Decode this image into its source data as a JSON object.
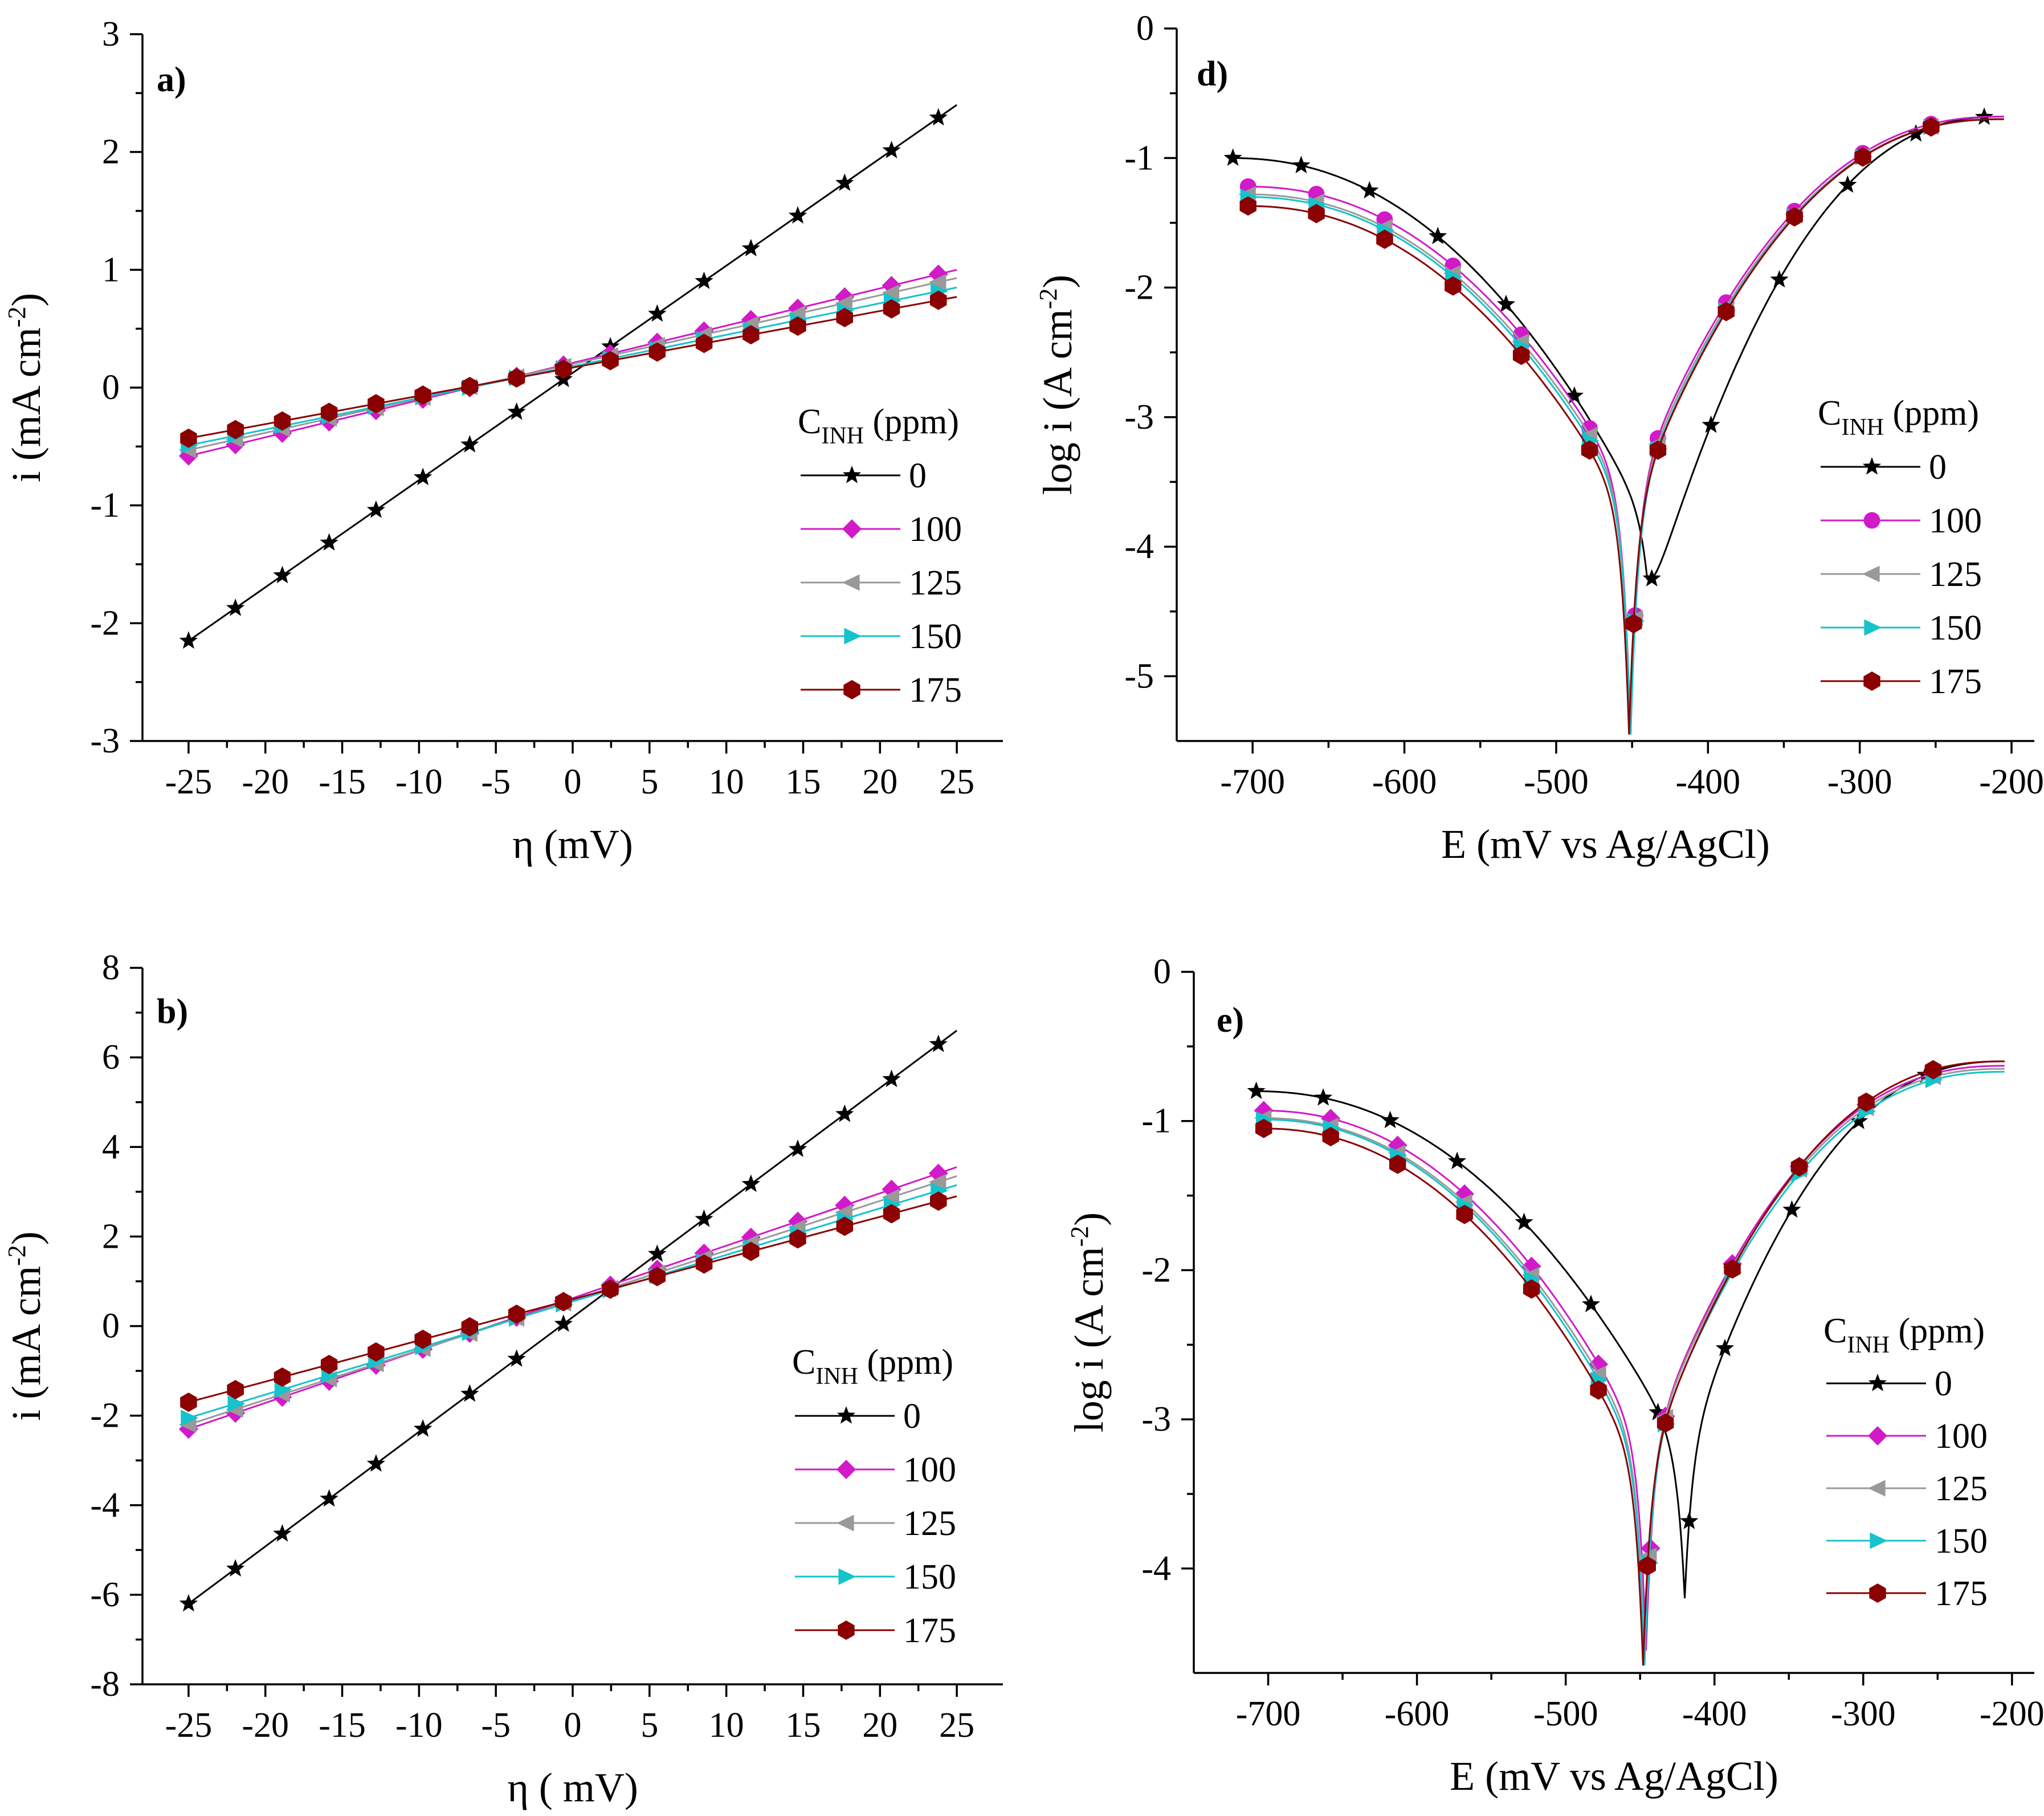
{
  "colors": {
    "s0": "#000000",
    "s100": "#d11ac8",
    "s125": "#999999",
    "s150": "#14c3cc",
    "s175": "#8b0000"
  },
  "chart_data": [
    {
      "id": "a",
      "type": "line",
      "panel_label": "a)",
      "xlabel": "η (mV)",
      "ylabel_main": "i (mA cm",
      "ylabel_sup": "-2",
      "ylabel_end": ")",
      "xlim": [
        -28,
        28
      ],
      "ylim": [
        -3,
        3
      ],
      "xticks": [
        -25,
        -20,
        -15,
        -10,
        -5,
        0,
        5,
        10,
        15,
        20,
        25
      ],
      "yticks": [
        -3,
        -2,
        -1,
        0,
        1,
        2,
        3
      ],
      "legend_title_main": "C",
      "legend_title_sub": "INH",
      "legend_title_end": " (ppm)",
      "series": [
        {
          "name": "0",
          "color": "s0",
          "marker": "star",
          "x0": -25,
          "x1": 25,
          "y0": -2.15,
          "y1": 2.4
        },
        {
          "name": "100",
          "color": "s100",
          "marker": "diamond",
          "x0": -25,
          "x1": 25,
          "y0": -0.58,
          "y1": 1.0
        },
        {
          "name": "125",
          "color": "s125",
          "marker": "triangle-left",
          "x0": -25,
          "x1": 25,
          "y0": -0.53,
          "y1": 0.93
        },
        {
          "name": "150",
          "color": "s150",
          "marker": "triangle-right",
          "x0": -25,
          "x1": 25,
          "y0": -0.49,
          "y1": 0.85
        },
        {
          "name": "175",
          "color": "s175",
          "marker": "hexagon",
          "x0": -25,
          "x1": 25,
          "y0": -0.43,
          "y1": 0.77
        }
      ]
    },
    {
      "id": "b",
      "type": "line",
      "panel_label": "b)",
      "xlabel": "η ( mV)",
      "ylabel_main": "i (mA cm",
      "ylabel_sup": "-2",
      "ylabel_end": ")",
      "xlim": [
        -28,
        28
      ],
      "ylim": [
        -8,
        8
      ],
      "xticks": [
        -25,
        -20,
        -15,
        -10,
        -5,
        0,
        5,
        10,
        15,
        20,
        25
      ],
      "yticks": [
        -8,
        -6,
        -4,
        -2,
        0,
        2,
        4,
        6,
        8
      ],
      "legend_title_main": "C",
      "legend_title_sub": "INH",
      "legend_title_end": " (ppm)",
      "series": [
        {
          "name": "0",
          "color": "s0",
          "marker": "star",
          "x0": -25,
          "x1": 25,
          "y0": -6.2,
          "y1": 6.6
        },
        {
          "name": "100",
          "color": "s100",
          "marker": "diamond",
          "x0": -25,
          "x1": 25,
          "y0": -2.3,
          "y1": 3.55
        },
        {
          "name": "125",
          "color": "s125",
          "marker": "triangle-left",
          "x0": -25,
          "x1": 25,
          "y0": -2.2,
          "y1": 3.35
        },
        {
          "name": "150",
          "color": "s150",
          "marker": "triangle-right",
          "x0": -25,
          "x1": 25,
          "y0": -2.05,
          "y1": 3.15
        },
        {
          "name": "175",
          "color": "s175",
          "marker": "hexagon",
          "x0": -25,
          "x1": 25,
          "y0": -1.7,
          "y1": 2.9
        }
      ]
    },
    {
      "id": "d",
      "type": "line",
      "panel_label": "d)",
      "xlabel": "E (mV vs Ag/AgCl)",
      "ylabel_main": "log  i  (A cm",
      "ylabel_sup": "-2",
      "ylabel_end": ")",
      "xlim": [
        -750,
        -185
      ],
      "ylim": [
        -5.5,
        0
      ],
      "xticks": [
        -700,
        -600,
        -500,
        -400,
        -300,
        -200
      ],
      "yticks": [
        -5,
        -4,
        -3,
        -2,
        -1,
        0
      ],
      "legend_title_main": "C",
      "legend_title_sub": "INH",
      "legend_title_end": " (ppm)",
      "series": [
        {
          "name": "0",
          "color": "s0",
          "marker": "star",
          "xs": [
            -715,
            -440,
            -205
          ],
          "a": [
            -1.0,
            -3.8
          ],
          "c": [
            -0.68,
            -4.5
          ],
          "tip": -4.25
        },
        {
          "name": "100",
          "color": "s100",
          "marker": "circle",
          "xs": [
            -705,
            -451,
            -205
          ],
          "a": [
            -1.22,
            -3.6
          ],
          "c": [
            -0.68,
            -3.6
          ],
          "tip": -5.45
        },
        {
          "name": "125",
          "color": "s125",
          "marker": "triangle-left",
          "xs": [
            -705,
            -451,
            -205
          ],
          "a": [
            -1.28,
            -3.65
          ],
          "c": [
            -0.7,
            -3.65
          ],
          "tip": -5.45
        },
        {
          "name": "150",
          "color": "s150",
          "marker": "triangle-right",
          "xs": [
            -705,
            -451,
            -205
          ],
          "a": [
            -1.3,
            -3.7
          ],
          "c": [
            -0.7,
            -3.7
          ],
          "tip": -5.45
        },
        {
          "name": "175",
          "color": "s175",
          "marker": "hexagon",
          "xs": [
            -705,
            -452,
            -205
          ],
          "a": [
            -1.37,
            -3.75
          ],
          "c": [
            -0.7,
            -3.75
          ],
          "tip": -5.45
        }
      ]
    },
    {
      "id": "e",
      "type": "line",
      "panel_label": "e)",
      "xlabel": "E (mV vs Ag/AgCl)",
      "ylabel_main": "log  i  (A cm",
      "ylabel_sup": "-2",
      "ylabel_end": ")",
      "xlim": [
        -750,
        -185
      ],
      "ylim": [
        -4.7,
        0
      ],
      "xticks": [
        -700,
        -600,
        -500,
        -400,
        -300,
        -200
      ],
      "yticks": [
        -4,
        -3,
        -2,
        -1,
        0
      ],
      "legend_title_main": "C",
      "legend_title_sub": "INH",
      "legend_title_end": " (ppm)",
      "series": [
        {
          "name": "0",
          "color": "s0",
          "marker": "star",
          "xs": [
            -710,
            -420,
            -205
          ],
          "a": [
            -0.8,
            -3.25
          ],
          "c": [
            -0.6,
            -3.25
          ],
          "tip": -4.2
        },
        {
          "name": "100",
          "color": "s100",
          "marker": "diamond",
          "xs": [
            -705,
            -446,
            -205
          ],
          "a": [
            -0.93,
            -3.2
          ],
          "c": [
            -0.63,
            -3.2
          ],
          "tip": -4.55
        },
        {
          "name": "125",
          "color": "s125",
          "marker": "triangle-left",
          "xs": [
            -705,
            -447,
            -205
          ],
          "a": [
            -0.98,
            -3.25
          ],
          "c": [
            -0.65,
            -3.25
          ],
          "tip": -4.6
        },
        {
          "name": "150",
          "color": "s150",
          "marker": "triangle-right",
          "xs": [
            -705,
            -447,
            -205
          ],
          "a": [
            -0.99,
            -3.3
          ],
          "c": [
            -0.67,
            -3.3
          ],
          "tip": -4.65
        },
        {
          "name": "175",
          "color": "s175",
          "marker": "hexagon",
          "xs": [
            -705,
            -448,
            -205
          ],
          "a": [
            -1.05,
            -3.35
          ],
          "c": [
            -0.6,
            -3.35
          ],
          "tip": -4.65
        }
      ]
    }
  ]
}
